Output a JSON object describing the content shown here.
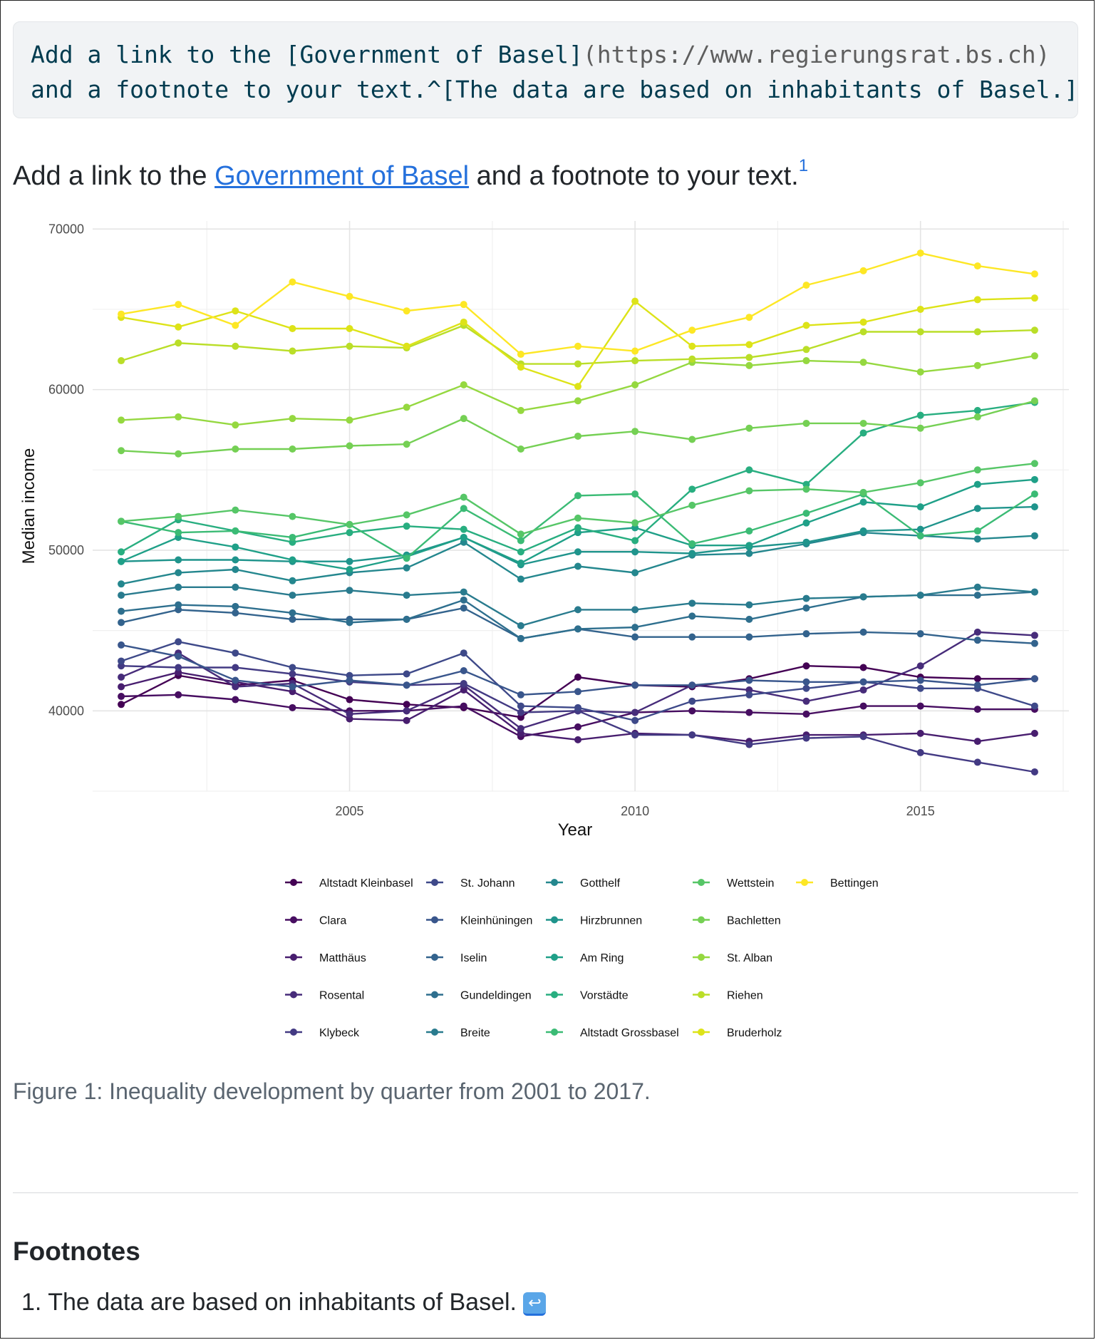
{
  "code": {
    "line1_a": "Add a link to the [Government of Basel]",
    "line1_b": "(https://www.regierungsrat.bs.ch)",
    "line2": "and a footnote to your text.^[The data are based on inhabitants of Basel.]"
  },
  "paragraph": {
    "prefix": "Add a link to the ",
    "link_text": "Government of Basel",
    "suffix": " and a footnote to your text.",
    "footnote_ref": "1"
  },
  "caption": "Figure 1: Inequality development by quarter from 2001 to 2017.",
  "footnotes": {
    "heading": "Footnotes",
    "items": [
      "1. The data are based on inhabitants of Basel."
    ],
    "backref_icon": "return-arrow-icon"
  },
  "chart_data": {
    "type": "line",
    "title": "",
    "xlabel": "Year",
    "ylabel": "Median income",
    "xlim": [
      2000.5,
      2017.6
    ],
    "ylim": [
      35000,
      70500
    ],
    "x_ticks": [
      2005,
      2010,
      2015
    ],
    "y_ticks": [
      40000,
      50000,
      60000,
      70000
    ],
    "y_tick_labels": [
      "40000",
      "50000",
      "60000",
      "70000"
    ],
    "grid": true,
    "legend_position": "bottom",
    "x": [
      2001,
      2002,
      2003,
      2004,
      2005,
      2006,
      2007,
      2008,
      2009,
      2010,
      2011,
      2012,
      2013,
      2014,
      2015,
      2016,
      2017
    ],
    "series": [
      {
        "name": "Altstadt Kleinbasel",
        "color": "#440154",
        "values": [
          40400,
          42200,
          41600,
          41900,
          40700,
          40400,
          40200,
          39600,
          42100,
          41600,
          41500,
          42000,
          42800,
          42700,
          42100,
          42000,
          42000
        ]
      },
      {
        "name": "Clara",
        "color": "#470e61",
        "values": [
          40900,
          41000,
          40700,
          40200,
          40000,
          40000,
          40300,
          38400,
          39000,
          39900,
          40000,
          39900,
          39800,
          40300,
          40300,
          40100,
          40100
        ]
      },
      {
        "name": "Matthäus",
        "color": "#481e6f",
        "values": [
          41500,
          42400,
          41800,
          41200,
          39500,
          39400,
          41300,
          38600,
          38200,
          38600,
          38500,
          38100,
          38500,
          38500,
          38600,
          38100,
          38600
        ]
      },
      {
        "name": "Rosental",
        "color": "#472c7a",
        "values": [
          42100,
          43600,
          41500,
          41700,
          39800,
          40000,
          41600,
          38900,
          40000,
          39900,
          41600,
          41300,
          40600,
          41300,
          42800,
          44900,
          44700
        ]
      },
      {
        "name": "Klybeck",
        "color": "#433a83",
        "values": [
          42800,
          42700,
          42700,
          42300,
          41800,
          41600,
          41700,
          39900,
          40000,
          38500,
          38500,
          37900,
          38300,
          38400,
          37400,
          36800,
          36200
        ]
      },
      {
        "name": "St. Johann",
        "color": "#3e4989",
        "values": [
          43100,
          44300,
          43600,
          42700,
          42200,
          42300,
          43600,
          40300,
          40200,
          39400,
          40600,
          41000,
          41400,
          41800,
          41400,
          41400,
          40300
        ]
      },
      {
        "name": "Kleinhüningen",
        "color": "#39568c",
        "values": [
          44100,
          43400,
          41900,
          41500,
          41900,
          41600,
          42500,
          41000,
          41200,
          41600,
          41600,
          41900,
          41800,
          41800,
          41900,
          41600,
          42000
        ]
      },
      {
        "name": "Iselin",
        "color": "#33638d",
        "values": [
          45500,
          46300,
          46100,
          45700,
          45700,
          45700,
          46400,
          44500,
          45100,
          44600,
          44600,
          44600,
          44800,
          44900,
          44800,
          44400,
          44200
        ]
      },
      {
        "name": "Gundeldingen",
        "color": "#2e6f8e",
        "values": [
          46200,
          46600,
          46500,
          46100,
          45500,
          45700,
          46900,
          44500,
          45100,
          45200,
          45900,
          45700,
          46400,
          47100,
          47200,
          47200,
          47400
        ]
      },
      {
        "name": "Breite",
        "color": "#297b8e",
        "values": [
          47200,
          47700,
          47700,
          47200,
          47500,
          47200,
          47400,
          45300,
          46300,
          46300,
          46700,
          46600,
          47000,
          47100,
          47200,
          47700,
          47400
        ]
      },
      {
        "name": "Gotthelf",
        "color": "#24878e",
        "values": [
          47900,
          48600,
          48800,
          48100,
          48600,
          48900,
          50500,
          48200,
          49000,
          48600,
          49700,
          49800,
          50400,
          51100,
          50900,
          50700,
          50900
        ]
      },
      {
        "name": "Hirzbrunnen",
        "color": "#1f948c",
        "values": [
          49300,
          49400,
          49400,
          49300,
          49300,
          49700,
          50800,
          49100,
          49900,
          49900,
          49800,
          50200,
          50500,
          51200,
          51300,
          52600,
          52700
        ]
      },
      {
        "name": "Am Ring",
        "color": "#1fa088",
        "values": [
          49300,
          50800,
          50200,
          49400,
          48800,
          49600,
          50800,
          49200,
          51100,
          51400,
          50300,
          50300,
          51700,
          53000,
          52700,
          54100,
          54400
        ]
      },
      {
        "name": "Vorstädte",
        "color": "#28ae80",
        "values": [
          49900,
          51900,
          51200,
          50500,
          51100,
          51500,
          51300,
          49900,
          51400,
          50600,
          53800,
          55000,
          54100,
          57300,
          58400,
          58700,
          59200
        ]
      },
      {
        "name": "Altstadt Grossbasel",
        "color": "#3bbb75",
        "values": [
          51800,
          51100,
          51200,
          50800,
          51600,
          49500,
          52600,
          50600,
          53400,
          53500,
          50400,
          51200,
          52300,
          53500,
          50900,
          51200,
          53500
        ]
      },
      {
        "name": "Wettstein",
        "color": "#56c667",
        "values": [
          51800,
          52100,
          52500,
          52100,
          51600,
          52200,
          53300,
          51000,
          52000,
          51700,
          52800,
          53700,
          53800,
          53600,
          54200,
          55000,
          55400
        ]
      },
      {
        "name": "Bachletten",
        "color": "#75d054",
        "values": [
          56200,
          56000,
          56300,
          56300,
          56500,
          56600,
          58200,
          56300,
          57100,
          57400,
          56900,
          57600,
          57900,
          57900,
          57600,
          58300,
          59300
        ]
      },
      {
        "name": "St. Alban",
        "color": "#95d840",
        "values": [
          58100,
          58300,
          57800,
          58200,
          58100,
          58900,
          60300,
          58700,
          59300,
          60300,
          61700,
          61500,
          61800,
          61700,
          61100,
          61500,
          62100
        ]
      },
      {
        "name": "Riehen",
        "color": "#bade28",
        "values": [
          61800,
          62900,
          62700,
          62400,
          62700,
          62600,
          64000,
          61600,
          61600,
          61800,
          61900,
          62000,
          62500,
          63600,
          63600,
          63600,
          63700
        ]
      },
      {
        "name": "Bruderholz",
        "color": "#dde318",
        "values": [
          64500,
          63900,
          64900,
          63800,
          63800,
          62700,
          64200,
          61400,
          60200,
          65500,
          62700,
          62800,
          64000,
          64200,
          65000,
          65600,
          65700
        ]
      },
      {
        "name": "Bettingen",
        "color": "#fde725",
        "values": [
          64700,
          65300,
          64000,
          66700,
          65800,
          64900,
          65300,
          62200,
          62700,
          62400,
          63700,
          64500,
          66500,
          67400,
          68500,
          67700,
          67200
        ]
      }
    ]
  }
}
